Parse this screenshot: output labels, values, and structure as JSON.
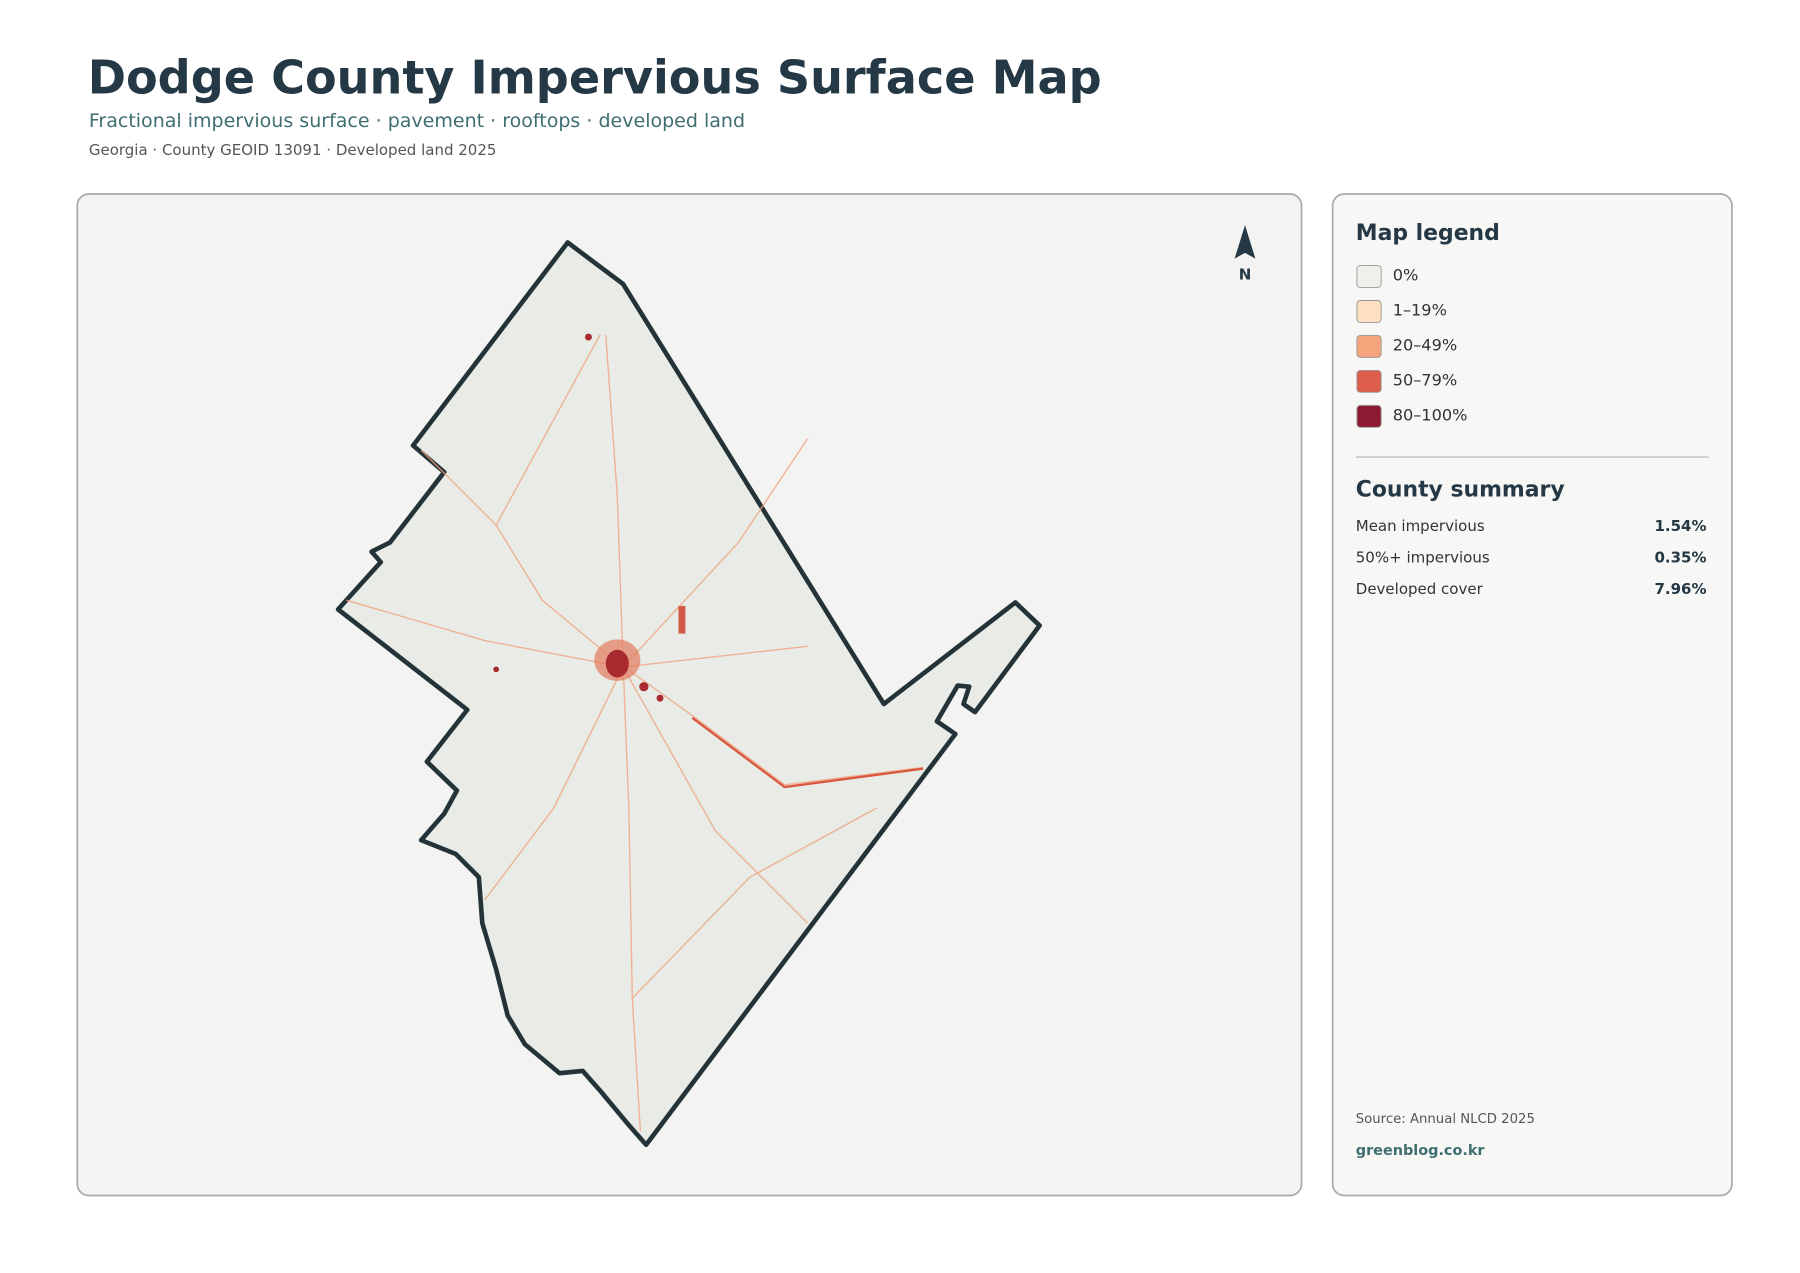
{
  "header": {
    "title": "Dodge County Impervious Surface Map",
    "subtitle": "Fractional impervious surface · pavement · rooftops · developed land",
    "meta": "Georgia · County GEOID 13091 · Developed land 2025"
  },
  "north": "N",
  "legend": {
    "title": "Map legend",
    "items": [
      {
        "label": "0%",
        "color": "#f0efec"
      },
      {
        "label": "1–19%",
        "color": "#fde0c0"
      },
      {
        "label": "20–49%",
        "color": "#f4a57b"
      },
      {
        "label": "50–79%",
        "color": "#dd5e4b"
      },
      {
        "label": "80–100%",
        "color": "#8e1a32"
      }
    ]
  },
  "summary": {
    "title": "County summary",
    "rows": [
      {
        "label": "Mean impervious",
        "value": "1.54%"
      },
      {
        "label": "50%+ impervious",
        "value": "0.35%"
      },
      {
        "label": "Developed cover",
        "value": "7.96%"
      }
    ]
  },
  "source": "Source: Annual NLCD 2025",
  "credit": "greenblog.co.kr"
}
